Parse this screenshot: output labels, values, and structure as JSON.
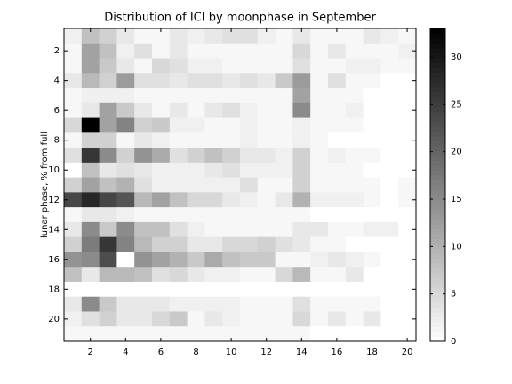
{
  "chart_data": {
    "type": "heatmap",
    "title": "Distribution of ICI by moonphase in September",
    "ylabel": "lunar phase, % from full",
    "x": [
      1,
      2,
      3,
      4,
      5,
      6,
      7,
      8,
      9,
      10,
      11,
      12,
      13,
      14,
      15,
      16,
      17,
      18,
      19,
      20
    ],
    "y": [
      1,
      2,
      3,
      4,
      5,
      6,
      7,
      8,
      9,
      10,
      11,
      12,
      13,
      14,
      15,
      16,
      17,
      18,
      19,
      20,
      21
    ],
    "values": [
      [
        2,
        8,
        6,
        3,
        1,
        1,
        3,
        2,
        3,
        4,
        4,
        2,
        1,
        3,
        1,
        1,
        1,
        3,
        2,
        1
      ],
      [
        1,
        12,
        8,
        2,
        4,
        1,
        3,
        1,
        1,
        1,
        1,
        1,
        1,
        5,
        1,
        3,
        1,
        1,
        1,
        2
      ],
      [
        1,
        12,
        7,
        3,
        1,
        5,
        4,
        2,
        2,
        1,
        1,
        1,
        1,
        4,
        1,
        1,
        2,
        2,
        1,
        1
      ],
      [
        3,
        9,
        6,
        13,
        4,
        4,
        3,
        4,
        4,
        3,
        4,
        3,
        7,
        13,
        1,
        4,
        1,
        1,
        0,
        0
      ],
      [
        1,
        2,
        2,
        2,
        1,
        1,
        1,
        1,
        1,
        1,
        1,
        1,
        1,
        12,
        1,
        1,
        1,
        0,
        0,
        0
      ],
      [
        1,
        3,
        12,
        7,
        3,
        1,
        3,
        1,
        3,
        4,
        2,
        1,
        1,
        15,
        1,
        1,
        2,
        0,
        0,
        0
      ],
      [
        5,
        33,
        12,
        16,
        6,
        7,
        2,
        2,
        1,
        1,
        2,
        1,
        1,
        2,
        1,
        1,
        1,
        0,
        0,
        0
      ],
      [
        1,
        6,
        6,
        1,
        3,
        2,
        1,
        1,
        1,
        1,
        2,
        1,
        1,
        2,
        1,
        0,
        0,
        0,
        0,
        0
      ],
      [
        4,
        26,
        15,
        6,
        14,
        11,
        4,
        6,
        8,
        6,
        3,
        3,
        2,
        6,
        1,
        2,
        1,
        1,
        0,
        0
      ],
      [
        0,
        8,
        3,
        4,
        3,
        2,
        2,
        2,
        3,
        4,
        2,
        2,
        2,
        6,
        1,
        1,
        1,
        0,
        0,
        0
      ],
      [
        6,
        12,
        8,
        10,
        4,
        2,
        2,
        2,
        2,
        2,
        4,
        1,
        1,
        6,
        1,
        1,
        1,
        1,
        0,
        1
      ],
      [
        24,
        28,
        24,
        22,
        9,
        12,
        8,
        5,
        5,
        3,
        2,
        1,
        3,
        10,
        2,
        2,
        2,
        1,
        0,
        1
      ],
      [
        1,
        3,
        3,
        2,
        1,
        1,
        1,
        1,
        1,
        1,
        1,
        1,
        1,
        1,
        0,
        0,
        0,
        0,
        0,
        0
      ],
      [
        3,
        15,
        7,
        15,
        8,
        8,
        4,
        2,
        1,
        1,
        1,
        1,
        1,
        3,
        3,
        1,
        1,
        2,
        2,
        0
      ],
      [
        6,
        17,
        26,
        16,
        9,
        6,
        6,
        3,
        3,
        5,
        5,
        6,
        4,
        3,
        1,
        1,
        0,
        0,
        0,
        0
      ],
      [
        14,
        15,
        23,
        0,
        14,
        12,
        10,
        7,
        11,
        8,
        7,
        7,
        1,
        1,
        2,
        3,
        2,
        1,
        0,
        0
      ],
      [
        8,
        3,
        9,
        9,
        8,
        4,
        5,
        3,
        2,
        2,
        1,
        1,
        5,
        9,
        1,
        1,
        3,
        0,
        0,
        0
      ],
      [
        0,
        0,
        0,
        0,
        0,
        0,
        0,
        0,
        0,
        0,
        0,
        0,
        0,
        0,
        0,
        0,
        0,
        0,
        0,
        0
      ],
      [
        3,
        15,
        7,
        3,
        3,
        3,
        2,
        2,
        2,
        2,
        1,
        1,
        1,
        4,
        1,
        1,
        1,
        1,
        0,
        0
      ],
      [
        2,
        4,
        6,
        3,
        3,
        5,
        7,
        1,
        3,
        2,
        1,
        1,
        1,
        5,
        1,
        3,
        1,
        3,
        0,
        0
      ],
      [
        1,
        1,
        1,
        1,
        1,
        1,
        1,
        1,
        1,
        1,
        1,
        1,
        1,
        1,
        0,
        0,
        0,
        0,
        0,
        0
      ]
    ],
    "xlim": [
      0.5,
      20.5
    ],
    "xticks": [
      2,
      4,
      6,
      8,
      10,
      12,
      14,
      16,
      18,
      20
    ],
    "ylim": [
      0.5,
      21.5
    ],
    "yticks": [
      2,
      4,
      6,
      8,
      10,
      12,
      14,
      16,
      18,
      20
    ],
    "y_reversed": true,
    "colormap": "gray_reversed",
    "clim": [
      0,
      33
    ],
    "colorbar_ticks": [
      0,
      5,
      10,
      15,
      20,
      25,
      30
    ]
  }
}
